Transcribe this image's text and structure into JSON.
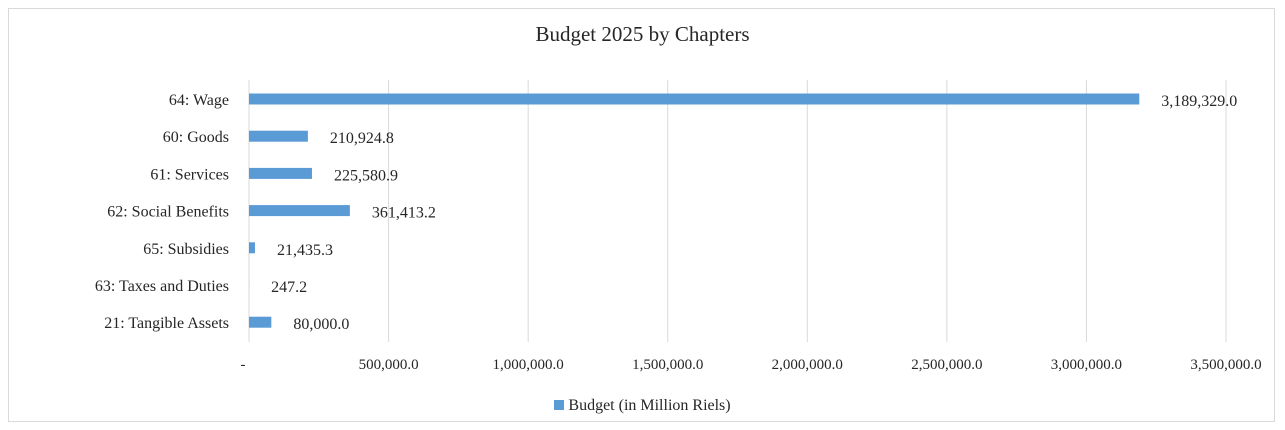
{
  "chart_data": {
    "type": "bar",
    "orientation": "horizontal",
    "title": "Budget 2025 by Chapters",
    "categories": [
      "64: Wage",
      "60: Goods",
      "61: Services",
      "62: Social Benefits",
      "65: Subsidies",
      "63: Taxes and Duties",
      "21: Tangible Assets"
    ],
    "series": [
      {
        "name": "Budget (in Million Riels)",
        "values": [
          3189329.0,
          210924.8,
          225580.9,
          361413.2,
          21435.3,
          247.2,
          80000.0
        ],
        "value_labels": [
          "3,189,329.0",
          "210,924.8",
          "225,580.9",
          "361,413.2",
          "21,435.3",
          "247.2",
          "80,000.0"
        ],
        "color": "#5b9bd5"
      }
    ],
    "xlim": [
      0,
      3500000
    ],
    "x_ticks": [
      0,
      500000,
      1000000,
      1500000,
      2000000,
      2500000,
      3000000,
      3500000
    ],
    "x_tick_labels": [
      "-",
      "500,000.0",
      "1,000,000.0",
      "1,500,000.0",
      "2,000,000.0",
      "2,500,000.0",
      "3,000,000.0",
      "3,500,000.0"
    ],
    "grid": "vertical",
    "legend": "bottom"
  },
  "colors": {
    "bar": "#5b9bd5",
    "grid": "#d9d9d9",
    "text": "#262626"
  }
}
